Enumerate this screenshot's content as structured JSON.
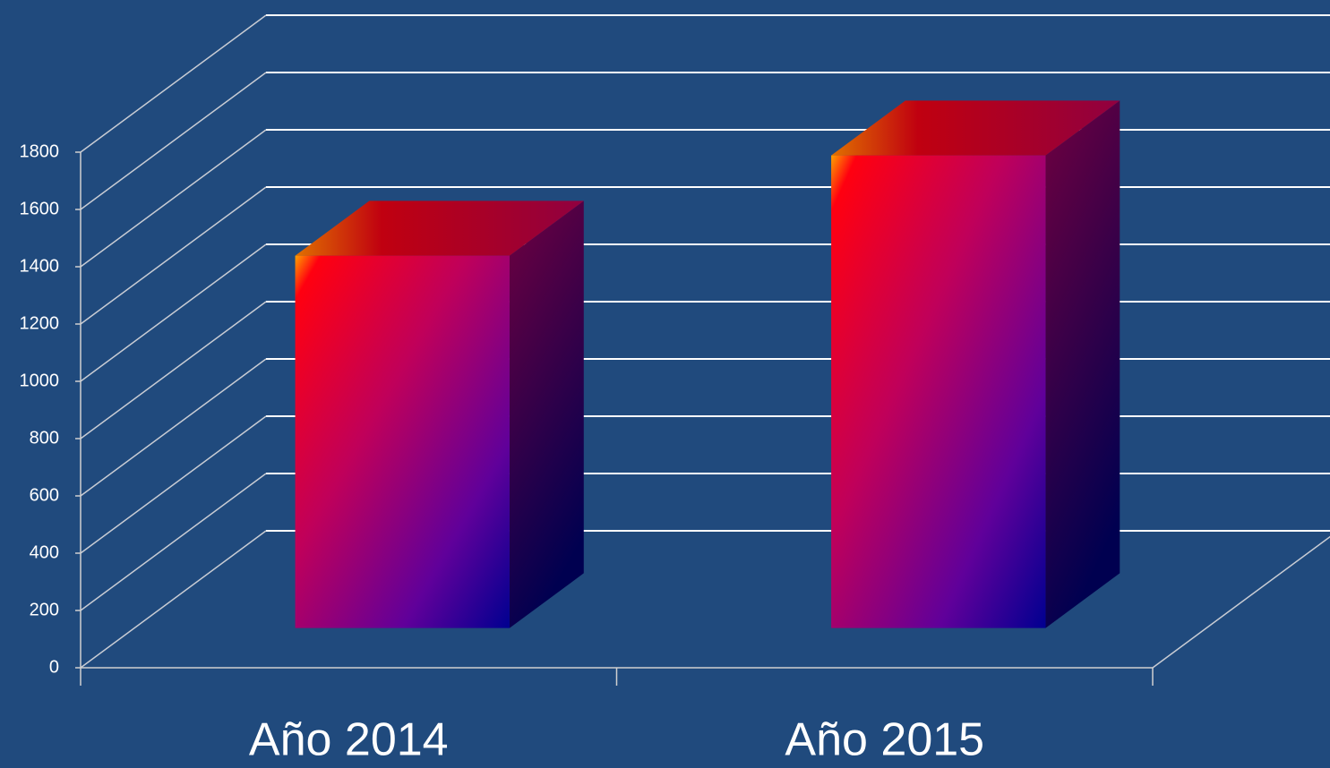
{
  "chart_data": {
    "type": "bar3d",
    "categories": [
      "Año 2014",
      "Año 2015"
    ],
    "values": [
      1300,
      1650
    ],
    "ylim": [
      0,
      1800
    ],
    "yticks": [
      0,
      200,
      400,
      600,
      800,
      1000,
      1200,
      1400,
      1600,
      1800
    ],
    "grid": true
  }
}
